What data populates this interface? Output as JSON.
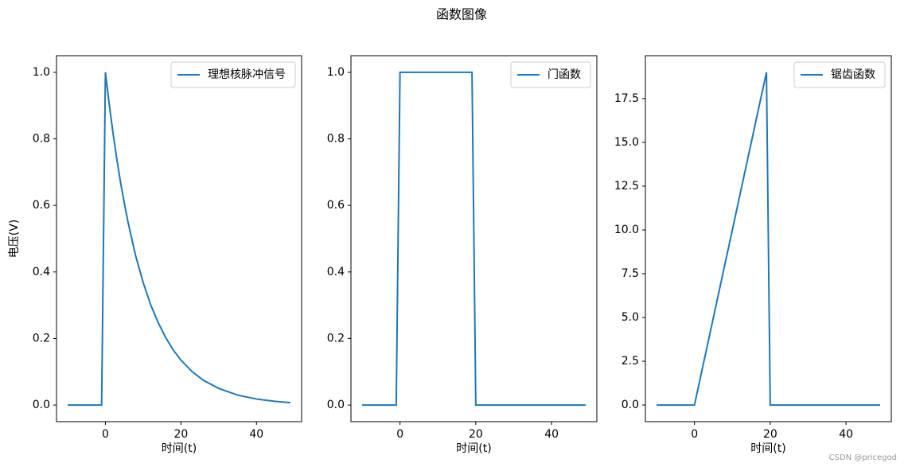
{
  "title": "函数图像",
  "watermark": "CSDN @pricegod",
  "chart_data": [
    {
      "type": "line",
      "xlabel": "时间(t)",
      "ylabel": "电压(V)",
      "x": [
        -10,
        -1,
        0,
        1,
        2,
        3,
        4,
        5,
        6,
        8,
        10,
        12,
        14,
        16,
        18,
        20,
        23,
        26,
        30,
        35,
        40,
        45,
        49
      ],
      "series": [
        {
          "name": "理想核脉冲信号",
          "color": "#1f77b4",
          "values": [
            0,
            0,
            1,
            0.905,
            0.819,
            0.741,
            0.67,
            0.607,
            0.549,
            0.449,
            0.368,
            0.301,
            0.247,
            0.202,
            0.165,
            0.135,
            0.1,
            0.074,
            0.05,
            0.03,
            0.018,
            0.011,
            0.007
          ]
        }
      ],
      "xlim": [
        -12.95,
        51.95
      ],
      "xticks": [
        0,
        20,
        40
      ],
      "ylim": [
        -0.05,
        1.05
      ],
      "yticks": [
        {
          "value": 0,
          "label": "0.0"
        },
        0.2,
        0.4,
        0.6,
        0.8,
        {
          "value": 1,
          "label": "1.0"
        }
      ],
      "legend": "upper right"
    },
    {
      "type": "line",
      "xlabel": "时间(t)",
      "x": [
        -10,
        -1,
        0,
        19,
        20,
        49
      ],
      "series": [
        {
          "name": "门函数",
          "color": "#1f77b4",
          "values": [
            0,
            0,
            1,
            1,
            0,
            0
          ]
        }
      ],
      "xlim": [
        -12.95,
        51.95
      ],
      "xticks": [
        0,
        20,
        40
      ],
      "ylim": [
        -0.05,
        1.05
      ],
      "yticks": [
        {
          "value": 0,
          "label": "0.0"
        },
        0.2,
        0.4,
        0.6,
        0.8,
        {
          "value": 1,
          "label": "1.0"
        }
      ],
      "legend": "upper right"
    },
    {
      "type": "line",
      "xlabel": "时间(t)",
      "x": [
        -10,
        0,
        19,
        20,
        49
      ],
      "series": [
        {
          "name": "锯齿函数",
          "color": "#1f77b4",
          "values": [
            0,
            0,
            19,
            0,
            0
          ]
        }
      ],
      "xlim": [
        -12.95,
        51.95
      ],
      "xticks": [
        0,
        20,
        40
      ],
      "ylim": [
        -0.95,
        19.95
      ],
      "yticks": [
        {
          "value": 0,
          "label": "0.0"
        },
        2.5,
        {
          "value": 5,
          "label": "5.0"
        },
        7.5,
        {
          "value": 10,
          "label": "10.0"
        },
        12.5,
        {
          "value": 15,
          "label": "15.0"
        },
        17.5
      ],
      "legend": "upper right"
    }
  ]
}
